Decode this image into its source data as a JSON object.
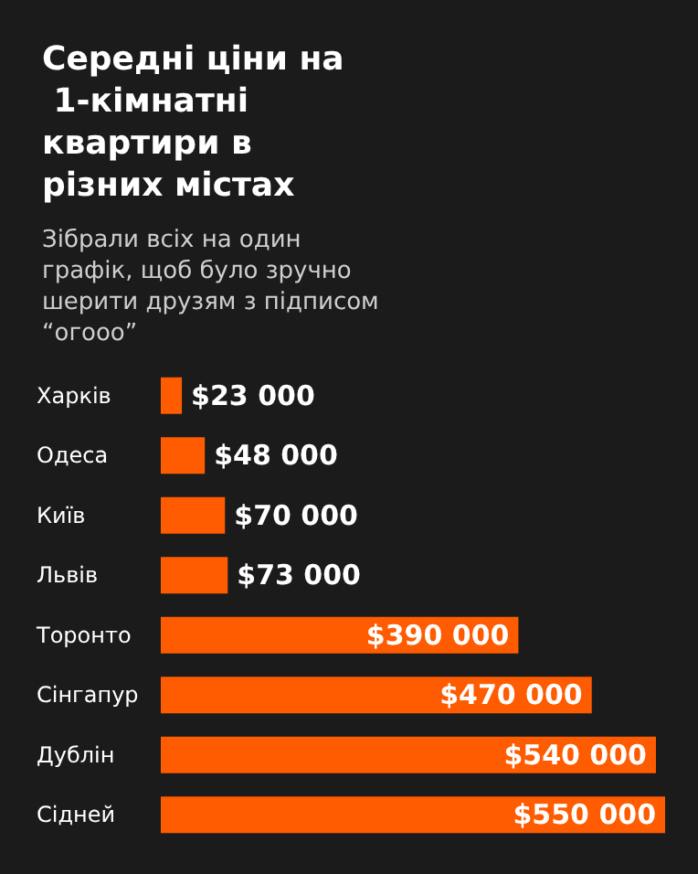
{
  "chart_data": {
    "type": "bar",
    "orientation": "horizontal",
    "title": "Середні ціни на 1-кімнатні квартири в різних містах",
    "subtitle": "Зібрали всіх на один графік, щоб було зручно шерити друзям з підписом “огооо”",
    "categories": [
      "Харків",
      "Одеса",
      "Київ",
      "Львів",
      "Торонто",
      "Сінгапур",
      "Дублін",
      "Сідней"
    ],
    "series": [
      {
        "color": "#ff5b00",
        "values": [
          23000,
          48000,
          70000,
          73000,
          390000,
          470000,
          540000,
          550000
        ],
        "value_labels": [
          "$23 000",
          "$48 000",
          "$70 000",
          "$73 000",
          "$390 000",
          "$470 000",
          "$540 000",
          "$550 000"
        ]
      }
    ]
  }
}
